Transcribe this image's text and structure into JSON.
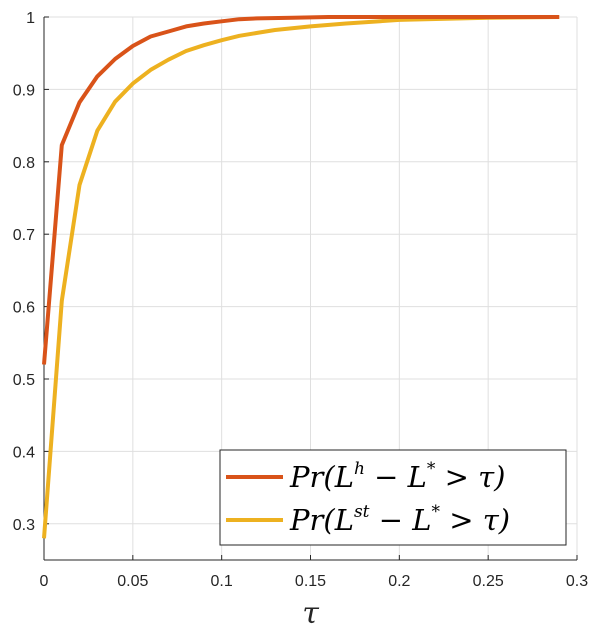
{
  "chart_data": {
    "type": "line",
    "title": "",
    "xlabel": "τ",
    "ylabel": "",
    "xlim": [
      0,
      0.3
    ],
    "ylim": [
      0.25,
      1.0
    ],
    "grid": true,
    "legend_position": "bottom-right",
    "xticks": [
      "0",
      "0.05",
      "0.1",
      "0.15",
      "0.2",
      "0.25",
      "0.3"
    ],
    "xtick_values": [
      0,
      0.05,
      0.1,
      0.15,
      0.2,
      0.25,
      0.3
    ],
    "yticks": [
      "0.3",
      "0.4",
      "0.5",
      "0.6",
      "0.7",
      "0.8",
      "0.9",
      "1"
    ],
    "ytick_values": [
      0.3,
      0.4,
      0.5,
      0.6,
      0.7,
      0.8,
      0.9,
      1.0
    ],
    "series": [
      {
        "name": "Pr(L^h − L^* > τ)",
        "legend": {
          "base": "Pr(L",
          "sup": "h",
          "mid": " − L",
          "sup2": "*",
          "tail": " > τ)"
        },
        "color": "#D95319",
        "x": [
          0,
          0.01,
          0.02,
          0.03,
          0.04,
          0.05,
          0.06,
          0.07,
          0.08,
          0.09,
          0.1,
          0.11,
          0.12,
          0.14,
          0.16,
          0.2,
          0.25,
          0.29
        ],
        "y": [
          0.52,
          0.823,
          0.882,
          0.918,
          0.942,
          0.96,
          0.973,
          0.98,
          0.987,
          0.991,
          0.994,
          0.997,
          0.998,
          0.999,
          1.0,
          1.0,
          1.0,
          1.0
        ]
      },
      {
        "name": "Pr(L^st − L^* > τ)",
        "legend": {
          "base": "Pr(L",
          "sup": "st",
          "mid": " − L",
          "sup2": "*",
          "tail": " > τ)"
        },
        "color": "#EDB120",
        "x": [
          0,
          0.01,
          0.02,
          0.03,
          0.04,
          0.05,
          0.06,
          0.07,
          0.08,
          0.09,
          0.1,
          0.11,
          0.12,
          0.13,
          0.15,
          0.17,
          0.2,
          0.25,
          0.29
        ],
        "y": [
          0.28,
          0.608,
          0.768,
          0.843,
          0.883,
          0.908,
          0.927,
          0.941,
          0.953,
          0.961,
          0.968,
          0.974,
          0.978,
          0.982,
          0.987,
          0.991,
          0.996,
          0.999,
          1.0
        ]
      }
    ]
  }
}
